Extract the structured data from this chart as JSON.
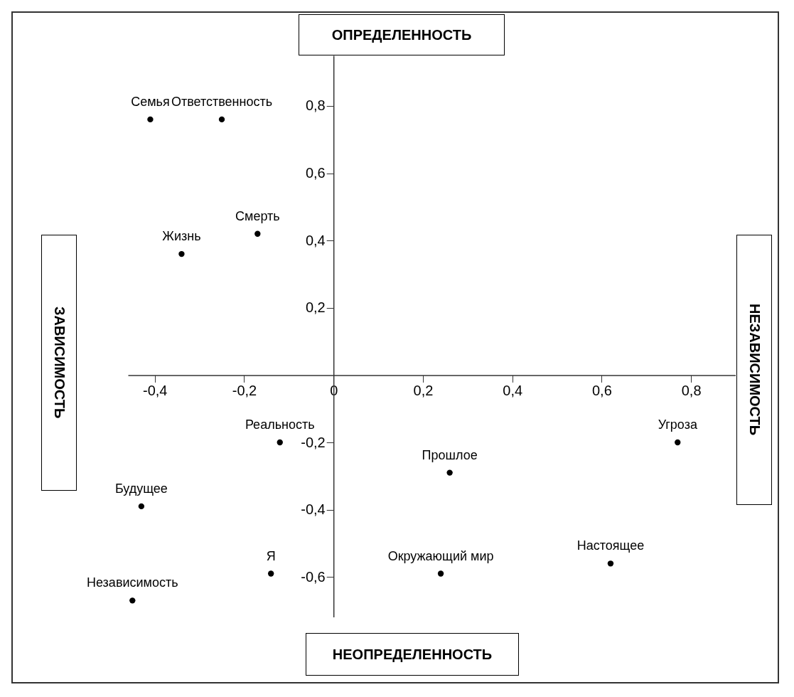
{
  "chart_data": {
    "type": "scatter",
    "marker": "circle",
    "grid": false,
    "legend": false,
    "xlim": [
      -0.46,
      0.9
    ],
    "ylim": [
      -0.72,
      0.95
    ],
    "xticks": [
      {
        "value": -0.4,
        "label": "-0,4"
      },
      {
        "value": -0.2,
        "label": "-0,2"
      },
      {
        "value": 0,
        "label": "0"
      },
      {
        "value": 0.2,
        "label": "0,2"
      },
      {
        "value": 0.4,
        "label": "0,4"
      },
      {
        "value": 0.6,
        "label": "0,6"
      },
      {
        "value": 0.8,
        "label": "0,8"
      }
    ],
    "yticks": [
      {
        "value": -0.6,
        "label": "-0,6"
      },
      {
        "value": -0.4,
        "label": "-0,4"
      },
      {
        "value": -0.2,
        "label": "-0,2"
      },
      {
        "value": 0.2,
        "label": "0,2"
      },
      {
        "value": 0.4,
        "label": "0,4"
      },
      {
        "value": 0.6,
        "label": "0,6"
      },
      {
        "value": 0.8,
        "label": "0,8"
      }
    ],
    "annotations": [
      "ОПРЕДЕЛЕННОСТЬ",
      "НЕОПРЕДЕЛЕННОСТЬ",
      "ЗАВИСИМОСТЬ",
      "НЕЗАВИСИМОСТЬ"
    ],
    "series": [
      {
        "name": "Семья",
        "color": "#000000",
        "x": [
          -0.41
        ],
        "values": [
          0.76
        ]
      },
      {
        "name": "Ответственность",
        "color": "#000000",
        "x": [
          -0.25
        ],
        "values": [
          0.76
        ]
      },
      {
        "name": "Жизнь",
        "color": "#000000",
        "x": [
          -0.34
        ],
        "values": [
          0.36
        ]
      },
      {
        "name": "Смерть",
        "color": "#000000",
        "x": [
          -0.17
        ],
        "values": [
          0.42
        ]
      },
      {
        "name": "Реальность",
        "color": "#000000",
        "x": [
          -0.12
        ],
        "values": [
          -0.2
        ]
      },
      {
        "name": "Будущее",
        "color": "#000000",
        "x": [
          -0.43
        ],
        "values": [
          -0.39
        ]
      },
      {
        "name": "Независимость",
        "color": "#000000",
        "x": [
          -0.45
        ],
        "values": [
          -0.67
        ]
      },
      {
        "name": "Я",
        "color": "#000000",
        "x": [
          -0.14
        ],
        "values": [
          -0.59
        ]
      },
      {
        "name": "Окружающий мир",
        "color": "#000000",
        "x": [
          0.24
        ],
        "values": [
          -0.59
        ]
      },
      {
        "name": "Прошлое",
        "color": "#000000",
        "x": [
          0.26
        ],
        "values": [
          -0.29
        ]
      },
      {
        "name": "Угроза",
        "color": "#000000",
        "x": [
          0.77
        ],
        "values": [
          -0.2
        ]
      },
      {
        "name": "Настоящее",
        "color": "#000000",
        "x": [
          0.62
        ],
        "values": [
          -0.56
        ]
      }
    ]
  }
}
